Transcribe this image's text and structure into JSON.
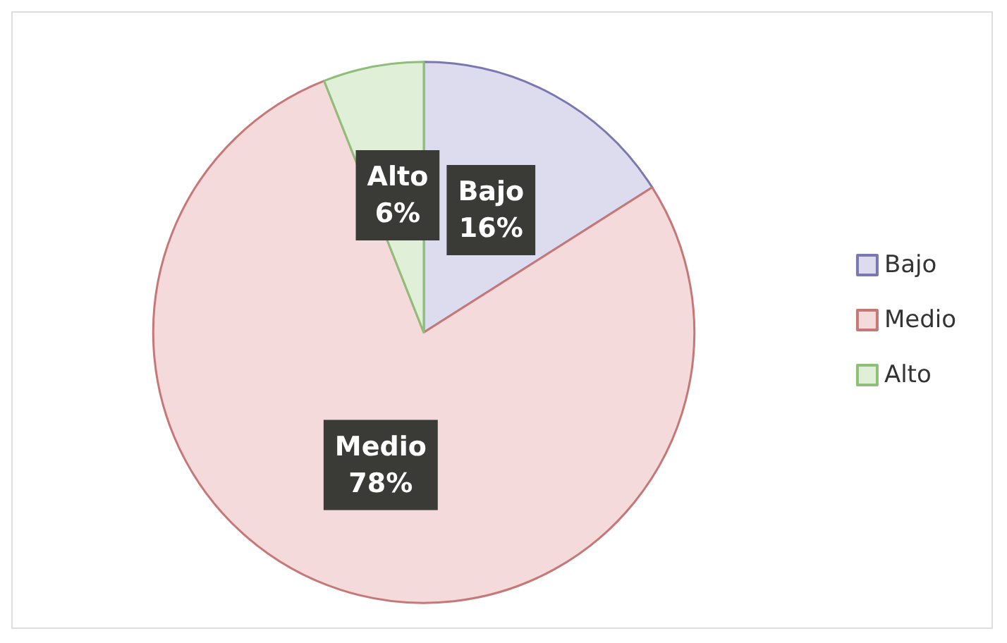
{
  "chart_data": {
    "type": "pie",
    "categories": [
      "Bajo",
      "Medio",
      "Alto"
    ],
    "values": [
      16,
      78,
      6
    ],
    "colors": [
      "#dcdcee",
      "#f4dada",
      "#e0f0d8"
    ],
    "value_labels": [
      "16%",
      "78%",
      "6%"
    ],
    "legend": "right"
  }
}
